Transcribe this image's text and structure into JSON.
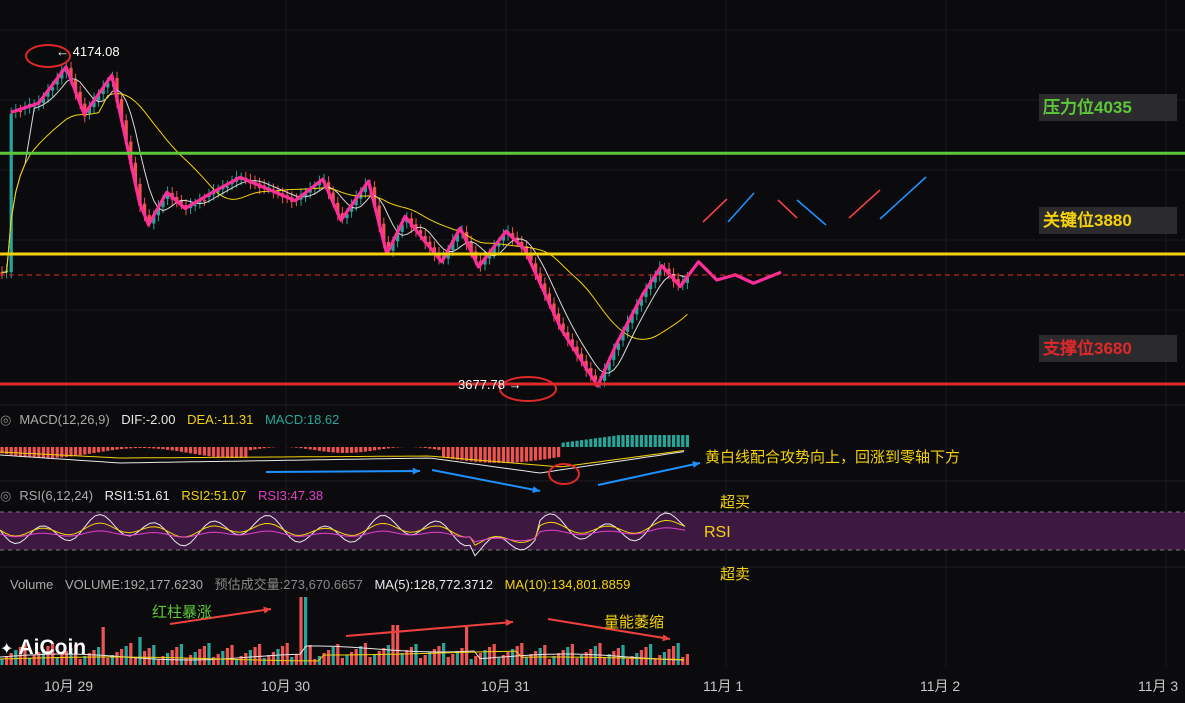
{
  "chart_data": {
    "type": "candlestick",
    "x_ticks": [
      "10月 29",
      "10月 30",
      "10月 31",
      "11月 1",
      "11月 2",
      "11月 3"
    ],
    "price_labels": {
      "high": "4174.08",
      "low": "3677.78"
    },
    "levels": [
      {
        "label": "压力位4035",
        "value": 4035,
        "color": "#5cc83a"
      },
      {
        "label": "关键位3880",
        "value": 3880,
        "color": "#f5d20a"
      },
      {
        "label": "支撑位3680",
        "value": 3680,
        "color": "#e0282a"
      }
    ],
    "zigzag": [
      {
        "x": "10-28 18:00",
        "y": 4098
      },
      {
        "x": "10-28 21:00",
        "y": 4112
      },
      {
        "x": "10-29 00:00",
        "y": 4168
      },
      {
        "x": "10-29 02:00",
        "y": 4095
      },
      {
        "x": "10-29 05:00",
        "y": 4155
      },
      {
        "x": "10-29 08:00",
        "y": 3960
      },
      {
        "x": "10-29 09:00",
        "y": 3925
      },
      {
        "x": "10-29 11:00",
        "y": 3975
      },
      {
        "x": "10-29 13:00",
        "y": 3950
      },
      {
        "x": "10-29 16:00",
        "y": 3975
      },
      {
        "x": "10-29 19:00",
        "y": 3998
      },
      {
        "x": "10-29 22:00",
        "y": 3980
      },
      {
        "x": "10-30 01:00",
        "y": 3962
      },
      {
        "x": "10-30 04:00",
        "y": 3995
      },
      {
        "x": "10-30 06:00",
        "y": 3932
      },
      {
        "x": "10-30 09:00",
        "y": 3992
      },
      {
        "x": "10-30 11:00",
        "y": 3880
      },
      {
        "x": "10-30 13:00",
        "y": 3938
      },
      {
        "x": "10-30 15:00",
        "y": 3902
      },
      {
        "x": "10-30 17:00",
        "y": 3868
      },
      {
        "x": "10-30 19:00",
        "y": 3920
      },
      {
        "x": "10-30 21:00",
        "y": 3860
      },
      {
        "x": "10-31 00:00",
        "y": 3915
      },
      {
        "x": "10-31 02:00",
        "y": 3888
      },
      {
        "x": "10-31 06:00",
        "y": 3765
      },
      {
        "x": "10-31 10:00",
        "y": 3677
      },
      {
        "x": "10-31 12:00",
        "y": 3740
      },
      {
        "x": "10-31 15:00",
        "y": 3820
      },
      {
        "x": "10-31 17:00",
        "y": 3862
      },
      {
        "x": "10-31 19:00",
        "y": 3830
      },
      {
        "x": "10-31 21:00",
        "y": 3868
      },
      {
        "x": "10-31 23:00",
        "y": 3840
      },
      {
        "x": "11-01 01:00",
        "y": 3848
      },
      {
        "x": "11-01 03:00",
        "y": 3835
      },
      {
        "x": "11-01 06:00",
        "y": 3852
      }
    ],
    "forecast_strokes": [
      "red-up",
      "blue-up",
      "red-down",
      "blue-down",
      "red-up",
      "blue-up"
    ]
  },
  "panels": {
    "macd": {
      "name": "MACD(12,26,9)",
      "dif": "DIF:-2.00",
      "dea": "DEA:-11.31",
      "macd": "MACD:18.62"
    },
    "rsi": {
      "name": "RSI(6,12,24)",
      "rsi1": "RSI1:51.61",
      "rsi2": "RSI2:51.07",
      "rsi3": "RSI3:47.38"
    },
    "volume": {
      "name": "Volume",
      "volume": "VOLUME:192,177.6230",
      "estimate": "预估成交量:273,670.6657",
      "ma5": "MA(5):128,772.3712",
      "ma10": "MA(10):134,801.8859"
    }
  },
  "annotations": {
    "macd_note": "黄白线配合攻势向上，回涨到零轴下方",
    "overbought": "超买",
    "rsi_label": "RSI",
    "oversold": "超卖",
    "volume_surge": "红柱暴涨",
    "volume_shrink": "量能萎缩"
  },
  "brand": "AiCoin",
  "colors": {
    "up": "#26a69a",
    "down": "#ef5350",
    "zigzag": "#ff2e9a",
    "dif": "#e8e8e8",
    "dea": "#f5d20a",
    "rsi_band": "#3d1942",
    "arrow_blue": "#1e90ff",
    "arrow_red": "#f04040"
  }
}
